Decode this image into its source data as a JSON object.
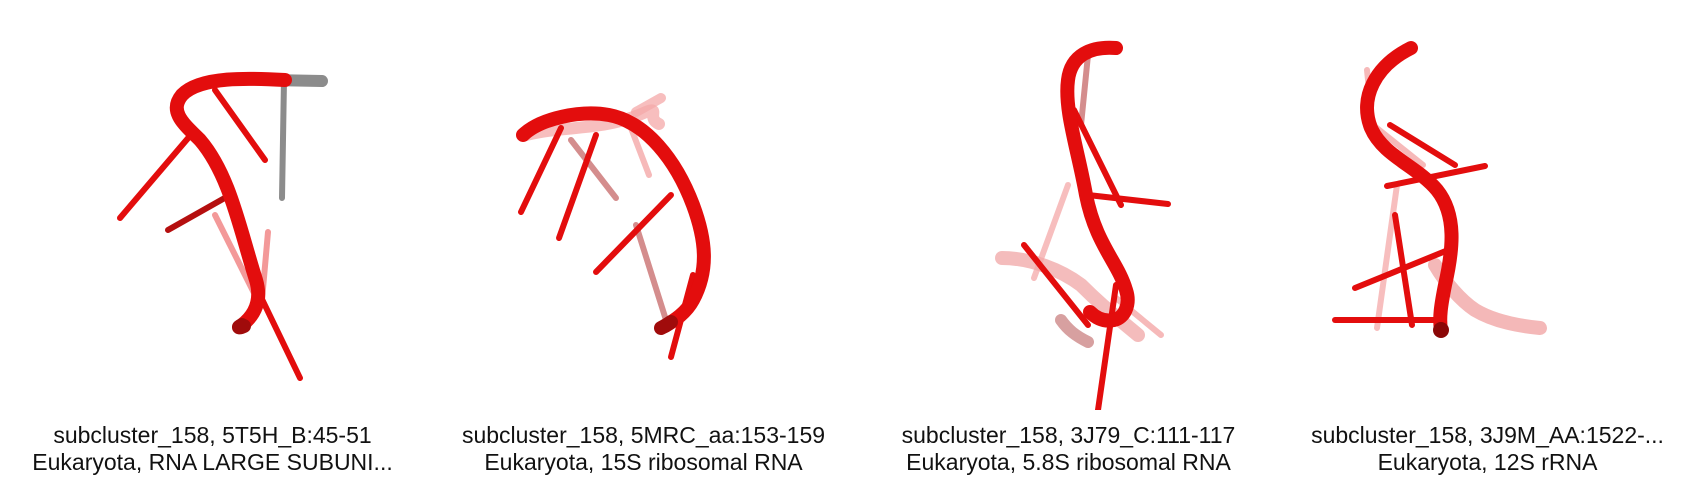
{
  "panels": [
    {
      "title": "subcluster_158, 5T5H_B:45-51",
      "subtitle": "Eukaryota, RNA LARGE SUBUNI..."
    },
    {
      "title": "subcluster_158, 5MRC_aa:153-159",
      "subtitle": "Eukaryota, 15S ribosomal RNA"
    },
    {
      "title": "subcluster_158, 3J79_C:111-117",
      "subtitle": "Eukaryota, 5.8S ribosomal RNA"
    },
    {
      "title": "subcluster_158, 3J9M_AA:1522-...",
      "subtitle": "Eukaryota, 12S rRNA"
    }
  ],
  "colors": {
    "backbone": "#e30d0d",
    "backbone_dark": "#a00b0b",
    "faded": "#f29a9a",
    "gray": "#8c8c8c"
  }
}
